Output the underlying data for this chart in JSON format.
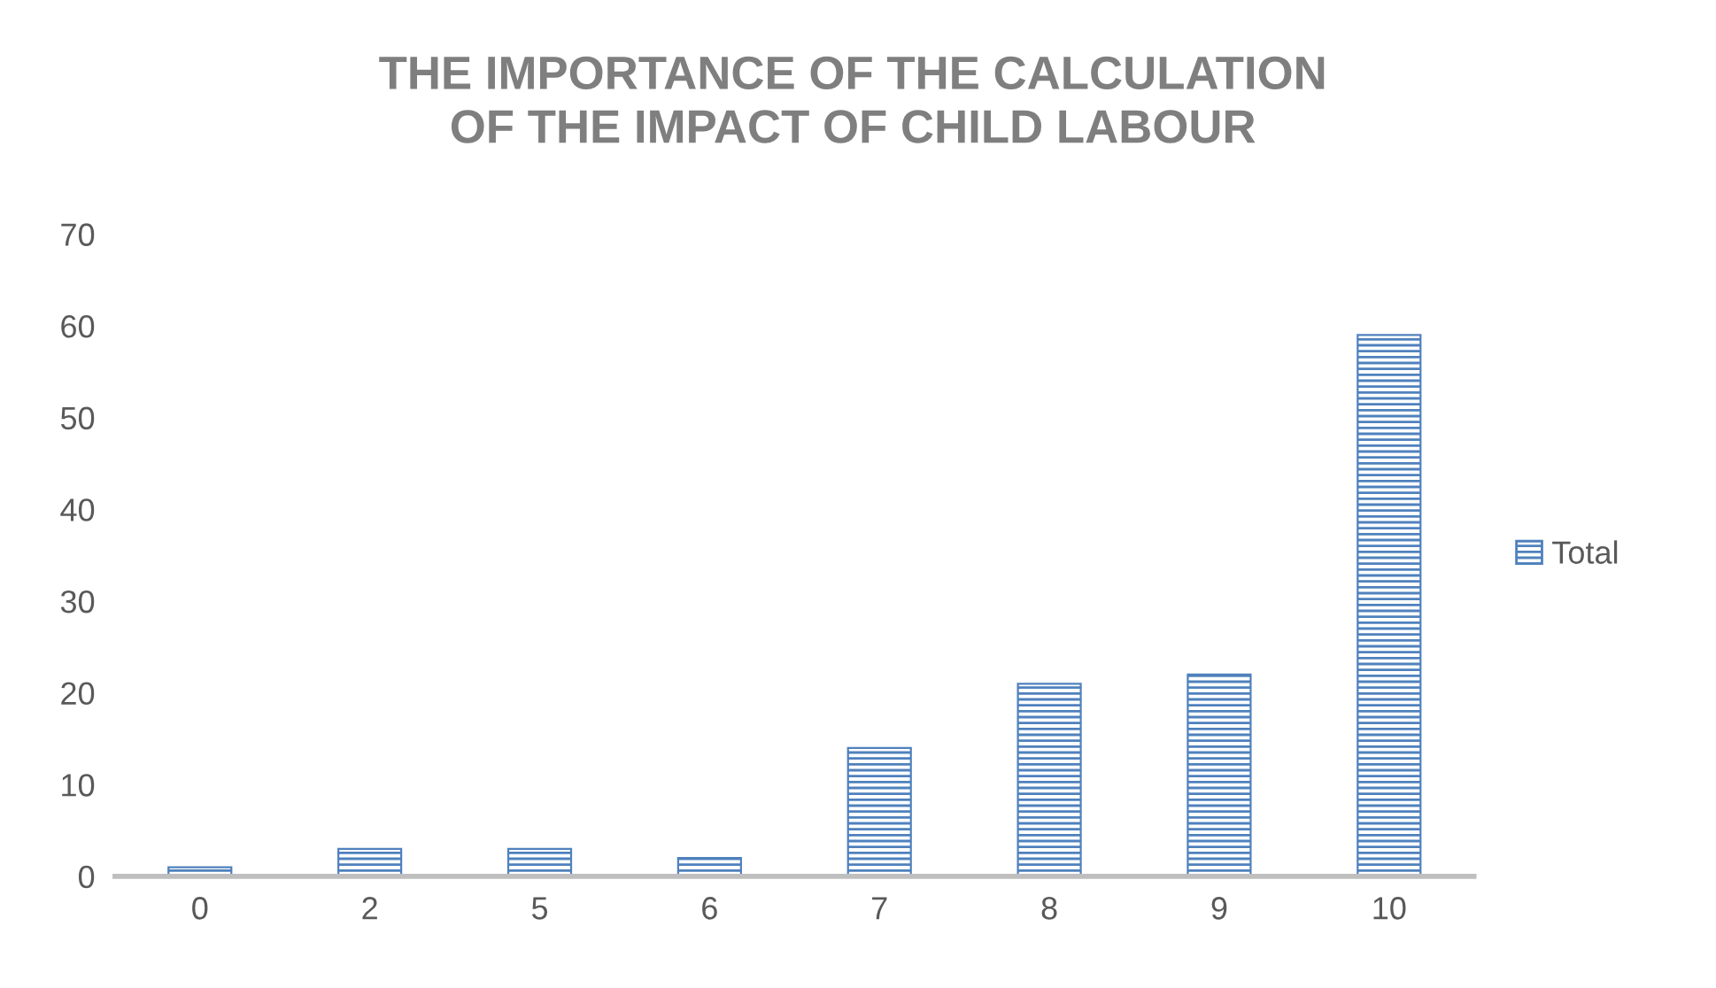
{
  "chart_data": {
    "type": "bar",
    "title": "THE IMPORTANCE OF THE CALCULATION OF THE IMPACT OF CHILD LABOUR",
    "categories": [
      "0",
      "2",
      "5",
      "6",
      "7",
      "8",
      "9",
      "10"
    ],
    "series": [
      {
        "name": "Total",
        "color": "#4f81bd",
        "values": [
          1,
          3,
          3,
          2,
          14,
          21,
          22,
          59
        ]
      }
    ],
    "ylim": [
      0,
      70
    ],
    "yticks": [
      0,
      10,
      20,
      30,
      40,
      50,
      60,
      70
    ],
    "grid": false,
    "legend": "right"
  }
}
